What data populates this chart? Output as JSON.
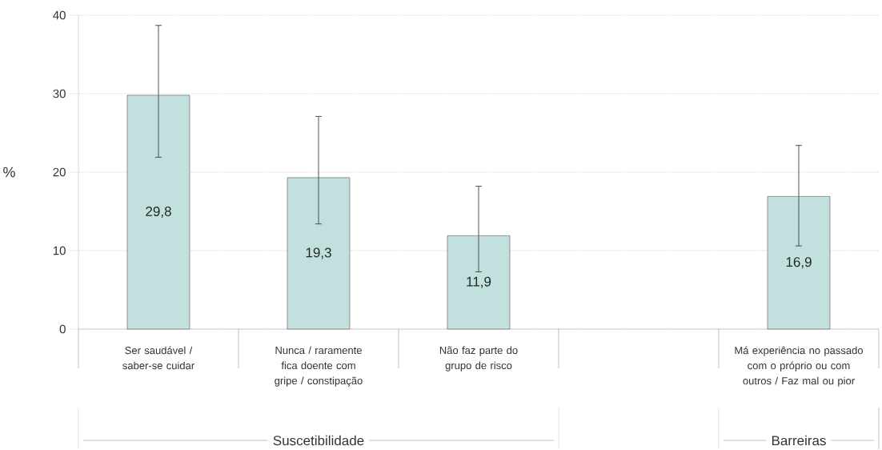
{
  "chart_data": {
    "type": "bar",
    "ylabel": "%",
    "categories": [
      "Ser saudável / saber-se cuidar",
      "Nunca / raramente fica doente com gripe / constipação",
      "Não faz parte do grupo de risco",
      null,
      "Má experiência no passado com o próprio ou com outros / Faz mal ou pior"
    ],
    "values": [
      29.8,
      19.3,
      11.9,
      null,
      16.9
    ],
    "errors": [
      [
        21.9,
        38.7
      ],
      [
        13.4,
        27.1
      ],
      [
        7.3,
        18.2
      ],
      null,
      [
        10.6,
        23.4
      ]
    ],
    "value_labels": [
      "29,8",
      "19,3",
      "11,9",
      null,
      "16,9"
    ],
    "color": "#c2e0dd",
    "ylim": [
      0,
      40
    ],
    "yticks": [
      0,
      10,
      20,
      30,
      40
    ],
    "grid": "y",
    "annotations": [
      "Suscetibilidade",
      "Barreiras"
    ]
  }
}
